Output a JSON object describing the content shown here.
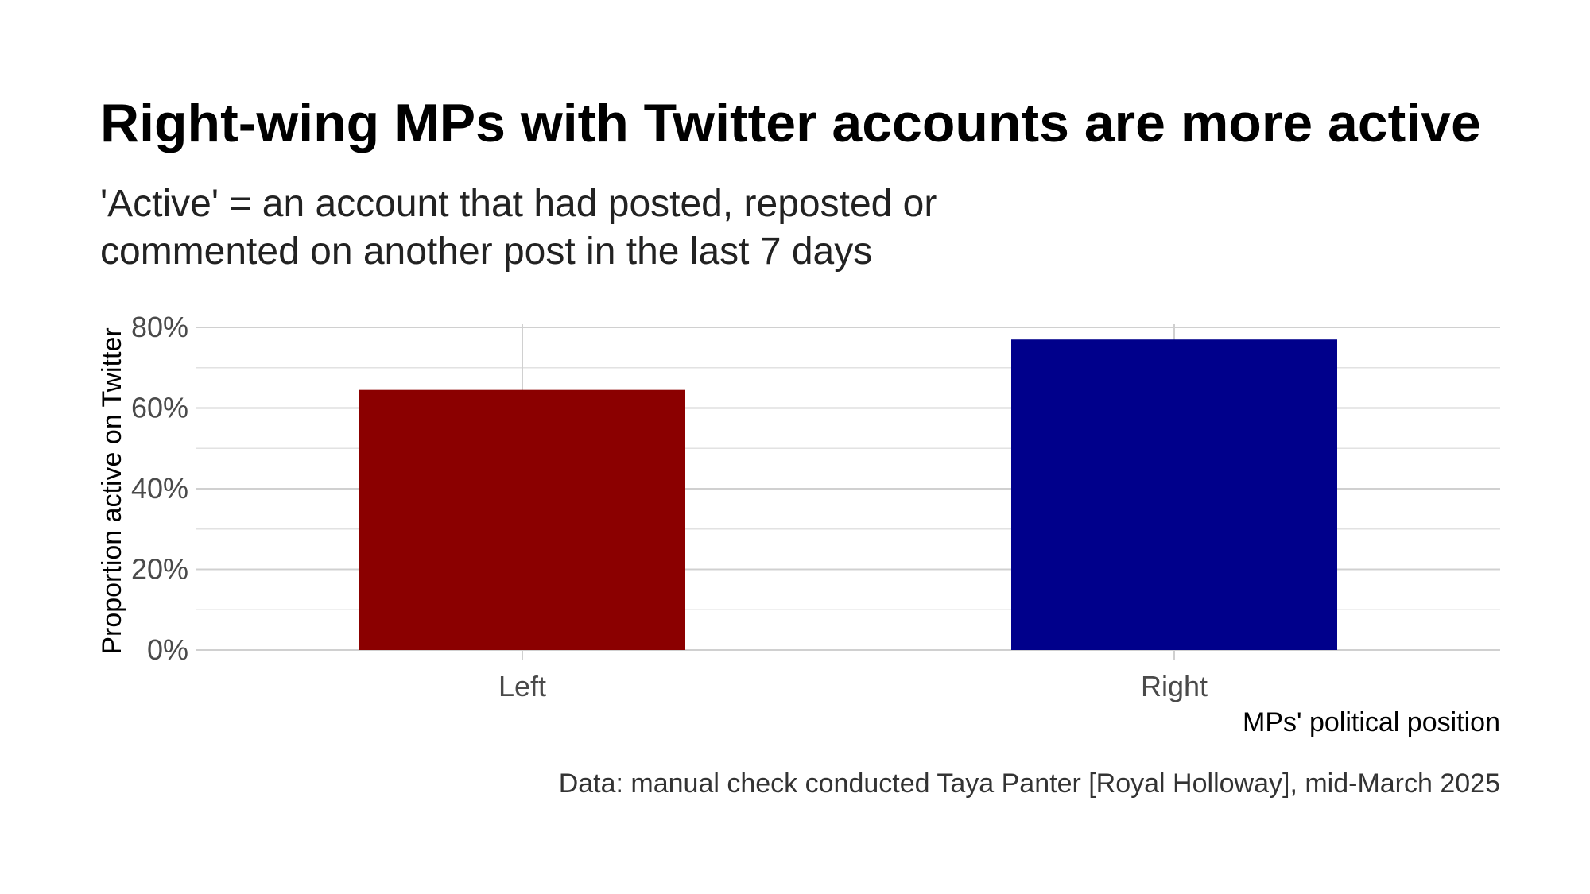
{
  "chart_data": {
    "type": "bar",
    "title": "Right-wing MPs with Twitter accounts are more active",
    "subtitle_lines": [
      "'Active' = an account that had posted, reposted or",
      "commented on another post in the last 7 days"
    ],
    "categories": [
      "Left",
      "Right"
    ],
    "values": [
      0.645,
      0.77
    ],
    "bar_colors": [
      "#8b0000",
      "#00008b"
    ],
    "xlabel": "MPs' political position",
    "ylabel": "Proportion active on Twitter",
    "ylim": [
      0,
      0.8
    ],
    "y_ticks": [
      0,
      0.2,
      0.4,
      0.6,
      0.8
    ],
    "y_tick_labels": [
      "0%",
      "20%",
      "40%",
      "60%",
      "80%"
    ],
    "grid": true,
    "caption": "Data: manual check conducted Taya Panter [Royal Holloway], mid-March 2025"
  }
}
